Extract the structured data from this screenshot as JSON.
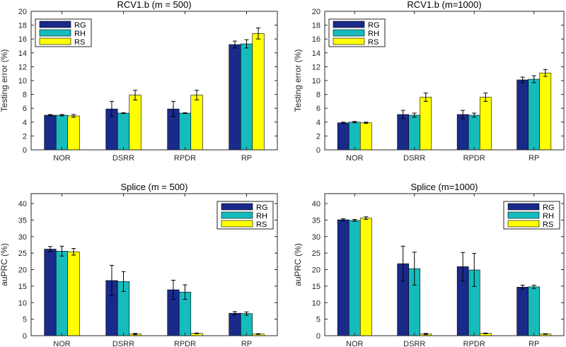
{
  "chart_data": [
    {
      "type": "bar",
      "title": "RCV1.b (m = 500)",
      "xlabel": "",
      "ylabel": "Testing error (%)",
      "ylim": [
        0,
        20
      ],
      "yticks": [
        0,
        2,
        4,
        6,
        8,
        10,
        12,
        14,
        16,
        18,
        20
      ],
      "categories": [
        "NOR",
        "DSRR",
        "RPDR",
        "RP"
      ],
      "legend_position": "top-left",
      "series": [
        {
          "name": "RG",
          "color": "#1a2a8a",
          "values": [
            5.0,
            5.9,
            5.9,
            15.2
          ],
          "errors": [
            0.1,
            1.1,
            1.1,
            0.5
          ]
        },
        {
          "name": "RH",
          "color": "#16bcbc",
          "values": [
            5.0,
            5.3,
            5.3,
            15.3
          ],
          "errors": [
            0.1,
            0.05,
            0.05,
            0.6
          ]
        },
        {
          "name": "RS",
          "color": "#ffff00",
          "values": [
            4.9,
            7.9,
            7.9,
            16.8
          ],
          "errors": [
            0.2,
            0.7,
            0.7,
            0.8
          ]
        }
      ]
    },
    {
      "type": "bar",
      "title": "RCV1.b (m=1000)",
      "xlabel": "",
      "ylabel": "Testing error (%)",
      "ylim": [
        0,
        20
      ],
      "yticks": [
        0,
        2,
        4,
        6,
        8,
        10,
        12,
        14,
        16,
        18,
        20
      ],
      "categories": [
        "NOR",
        "DSRR",
        "RPDR",
        "RP"
      ],
      "legend_position": "top-left",
      "series": [
        {
          "name": "RG",
          "color": "#1a2a8a",
          "values": [
            3.9,
            5.1,
            5.1,
            10.1
          ],
          "errors": [
            0.1,
            0.6,
            0.6,
            0.4
          ]
        },
        {
          "name": "RH",
          "color": "#16bcbc",
          "values": [
            4.0,
            5.0,
            5.0,
            10.2
          ],
          "errors": [
            0.1,
            0.3,
            0.3,
            0.5
          ]
        },
        {
          "name": "RS",
          "color": "#ffff00",
          "values": [
            3.9,
            7.6,
            7.6,
            11.1
          ],
          "errors": [
            0.1,
            0.6,
            0.6,
            0.5
          ]
        }
      ]
    },
    {
      "type": "bar",
      "title": "Splice (m = 500)",
      "xlabel": "",
      "ylabel": "auPRC (%)",
      "ylim": [
        0,
        43
      ],
      "yticks": [
        0,
        5,
        10,
        15,
        20,
        25,
        30,
        35,
        40
      ],
      "categories": [
        "NOR",
        "DSRR",
        "RPDR",
        "RP"
      ],
      "legend_position": "top-right",
      "series": [
        {
          "name": "RG",
          "color": "#1a2a8a",
          "values": [
            26.2,
            16.7,
            13.9,
            6.8
          ],
          "errors": [
            0.8,
            4.6,
            2.9,
            0.5
          ]
        },
        {
          "name": "RH",
          "color": "#16bcbc",
          "values": [
            25.6,
            16.4,
            13.2,
            6.7
          ],
          "errors": [
            1.5,
            3.0,
            2.2,
            0.5
          ]
        },
        {
          "name": "RS",
          "color": "#ffff00",
          "values": [
            25.4,
            0.5,
            0.7,
            0.5
          ],
          "errors": [
            1.0,
            0.2,
            0.1,
            0.1
          ]
        }
      ]
    },
    {
      "type": "bar",
      "title": "Splice (m=1000)",
      "xlabel": "",
      "ylabel": "auPRC (%)",
      "ylim": [
        0,
        43
      ],
      "yticks": [
        0,
        5,
        10,
        15,
        20,
        25,
        30,
        35,
        40
      ],
      "categories": [
        "NOR",
        "DSRR",
        "RPDR",
        "RP"
      ],
      "legend_position": "top-right",
      "series": [
        {
          "name": "RG",
          "color": "#1a2a8a",
          "values": [
            35.1,
            21.8,
            20.9,
            14.7
          ],
          "errors": [
            0.3,
            5.3,
            4.3,
            0.6
          ]
        },
        {
          "name": "RH",
          "color": "#16bcbc",
          "values": [
            34.9,
            20.3,
            19.9,
            14.8
          ],
          "errors": [
            0.3,
            5.0,
            5.0,
            0.5
          ]
        },
        {
          "name": "RS",
          "color": "#ffff00",
          "values": [
            35.6,
            0.5,
            0.7,
            0.5
          ],
          "errors": [
            0.4,
            0.2,
            0.1,
            0.1
          ]
        }
      ]
    }
  ]
}
